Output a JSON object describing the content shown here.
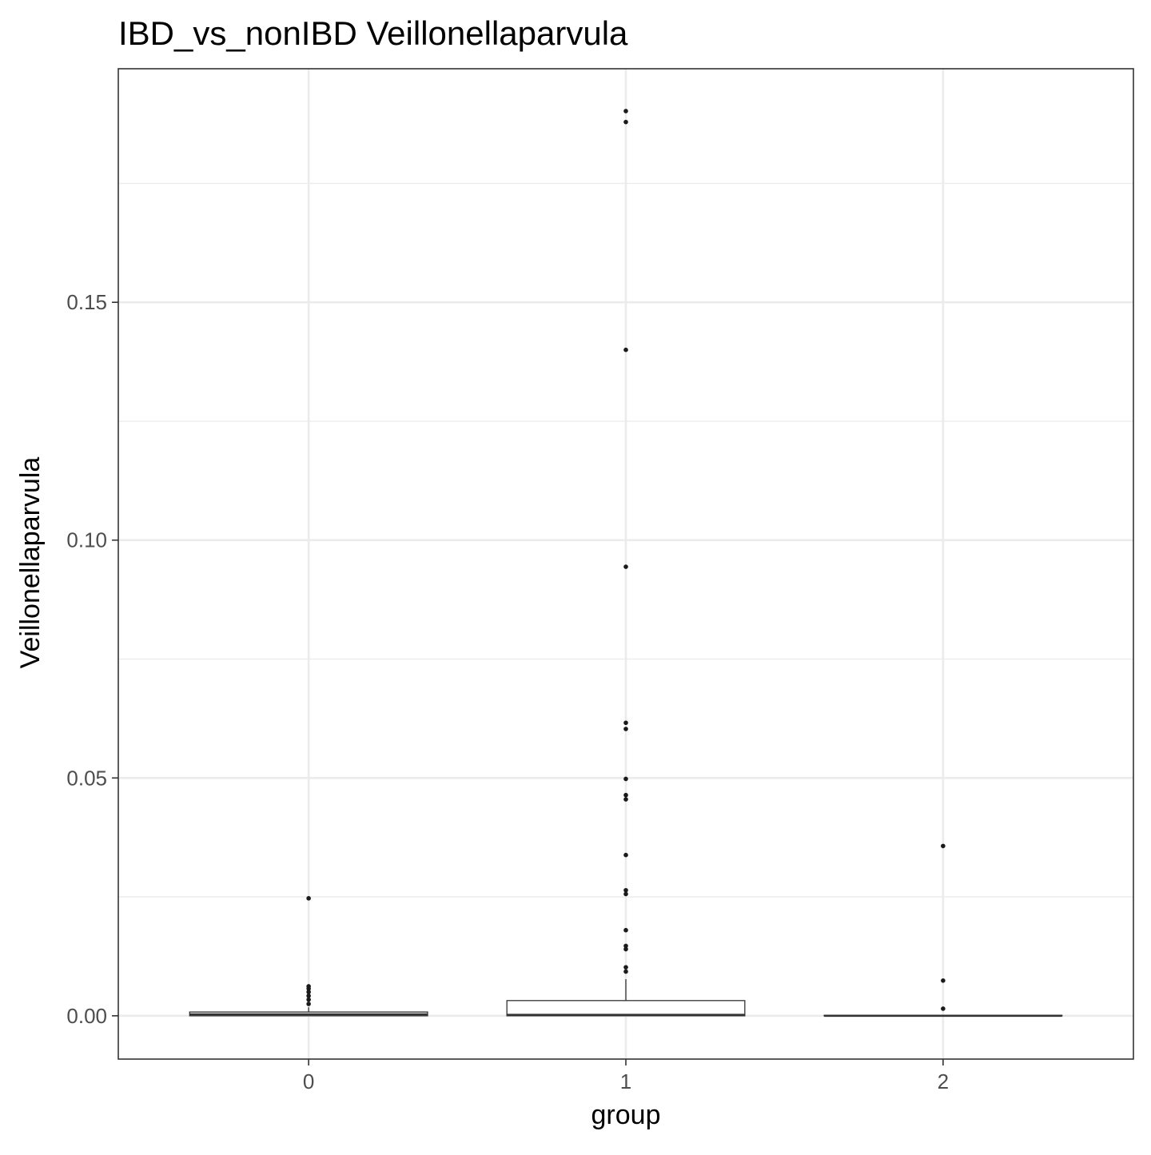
{
  "chart_data": {
    "type": "box",
    "title": "IBD_vs_nonIBD Veillonellaparvula",
    "xlabel": "group",
    "ylabel": "Veillonellaparvula",
    "categories": [
      "0",
      "1",
      "2"
    ],
    "ylim": [
      -0.0091,
      0.1991
    ],
    "yticks": [
      0.0,
      0.05,
      0.1,
      0.15
    ],
    "ytick_labels": [
      "0.00",
      "0.05",
      "0.10",
      "0.15"
    ],
    "grid": true,
    "legend": "none",
    "colors": {
      "panel_border": "#333333",
      "grid": "#ebebeb",
      "box_fill": "#ffffff",
      "box_line": "#333333",
      "point": "#1a1a1a"
    },
    "boxes": [
      {
        "group": "0",
        "q1": 0.0,
        "median": 0.0003,
        "q3": 0.0008,
        "whisker_low": 0.0,
        "whisker_high": 0.0018,
        "outliers": [
          0.0247,
          0.0062,
          0.0057,
          0.005,
          0.0042,
          0.0034,
          0.0025
        ]
      },
      {
        "group": "1",
        "q1": 0.0,
        "median": 0.0002,
        "q3": 0.0032,
        "whisker_low": 0.0,
        "whisker_high": 0.0077,
        "outliers": [
          0.1902,
          0.1879,
          0.14,
          0.0944,
          0.0616,
          0.0603,
          0.0498,
          0.0464,
          0.0455,
          0.0338,
          0.0264,
          0.0256,
          0.018,
          0.0147,
          0.014,
          0.0102,
          0.0093
        ]
      },
      {
        "group": "2",
        "q1": 0.0,
        "median": 0.0,
        "q3": 0.0001,
        "whisker_low": 0.0,
        "whisker_high": 0.0002,
        "outliers": [
          0.0357,
          0.0074,
          0.0015
        ]
      }
    ]
  }
}
